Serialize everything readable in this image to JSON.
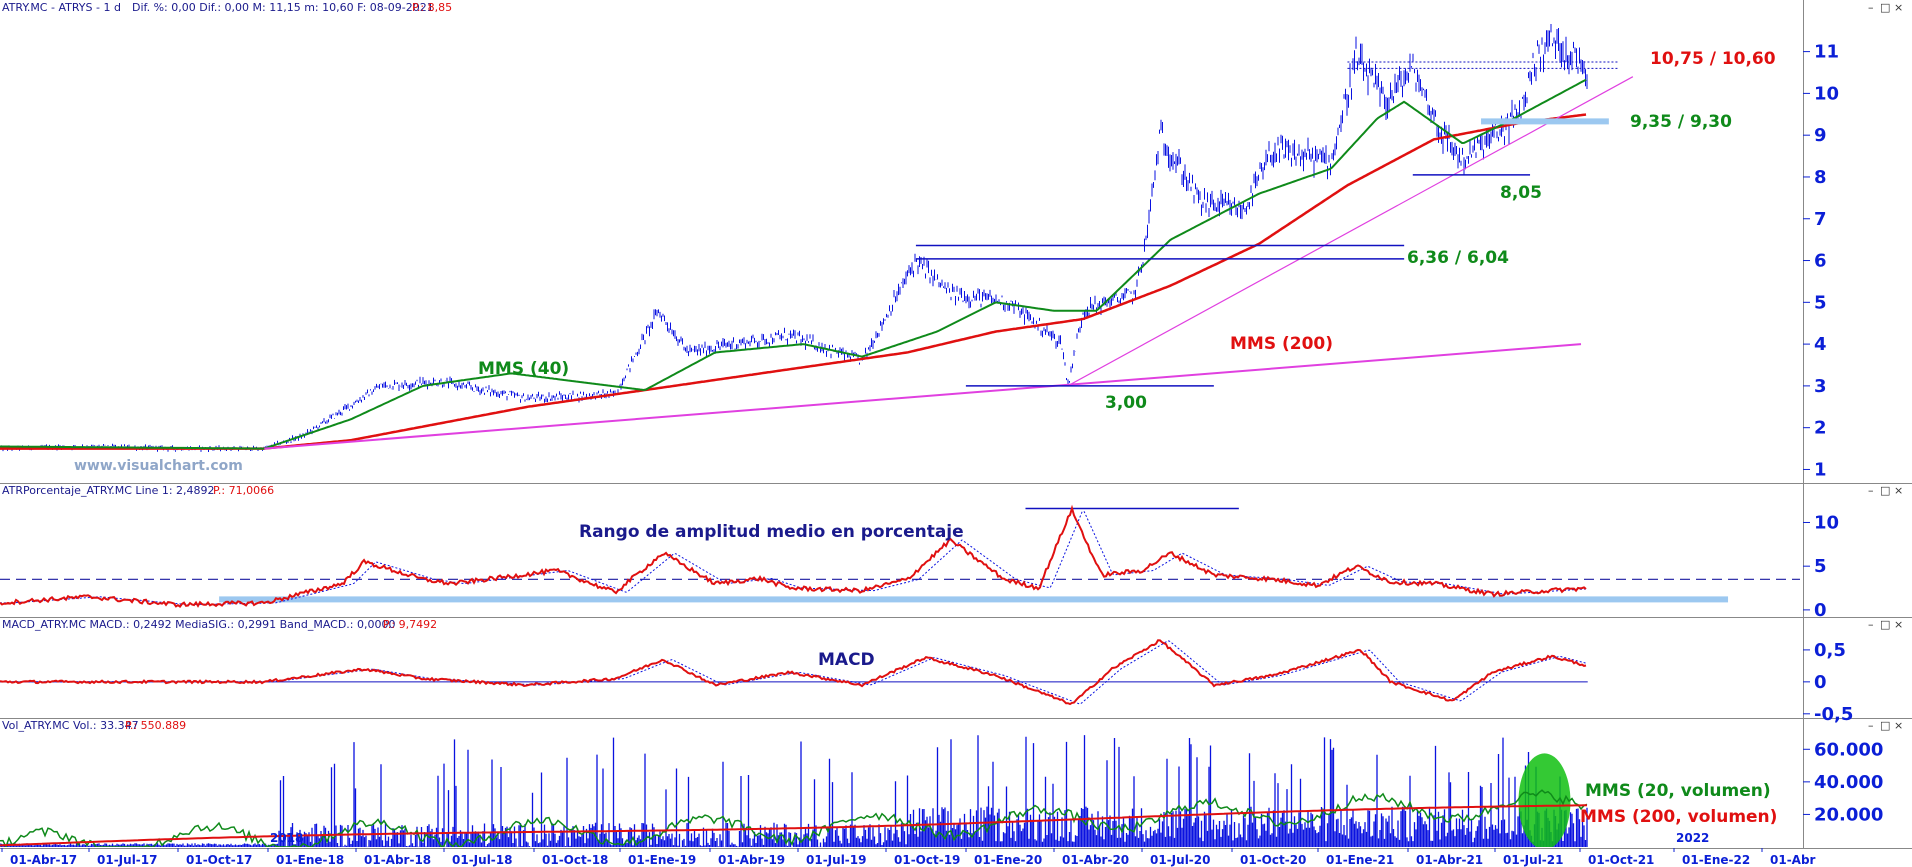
{
  "colors": {
    "price": "#0a12e0",
    "mms40": "#0f8a1a",
    "mms200": "#e01010",
    "trend": "#e040e0",
    "support": "#1010c0",
    "band": "#9cc8f0",
    "axis": "#0b1fd6",
    "header_red": "#e01010",
    "dash": "#1a1aa0"
  },
  "panels": {
    "price": {
      "header_series": "ATRY.MC - ATRYS - 1 d",
      "header_stats": "Dif. %: 0,00  Dif.: 0,00  M: 11,15  m: 10,60  F: 08-09-2021",
      "header_p": "P.: 8,85",
      "watermark": "www.visualchart.com"
    },
    "atr": {
      "header": "ATRPorcentaje_ATRY.MC  Line 1: 2,4892",
      "header_p": "P.: 71,0066",
      "title": "Rango de amplitud medio en porcentaje"
    },
    "macd": {
      "header": "MACD_ATRY.MC  MACD.: 0,2492  MediaSIG.: 0,2991  Band_MACD.: 0,0000",
      "header_p": "P.: 9,7492",
      "title": "MACD"
    },
    "vol": {
      "header": "Vol_ATRY.MC  Vol.: 33.347",
      "header_p": "P.: 550.889",
      "label_2018": "2018",
      "label_2022": "2022"
    }
  },
  "chart_data": [
    {
      "type": "line",
      "panel": "price",
      "y_ticks": [
        "1",
        "2",
        "3",
        "4",
        "5",
        "6",
        "7",
        "8",
        "9",
        "10",
        "11"
      ],
      "ylim": [
        0.7,
        11.9
      ],
      "x_ticks": [
        "01-Abr-17",
        "01-Jul-17",
        "01-Oct-17",
        "01-Ene-18",
        "01-Abr-18",
        "01-Jul-18",
        "01-Oct-18",
        "01-Ene-19",
        "01-Abr-19",
        "01-Jul-19",
        "01-Oct-19",
        "01-Ene-20",
        "01-Abr-20",
        "01-Jul-20",
        "01-Oct-20",
        "01-Ene-21",
        "01-Abr-21",
        "01-Jul-21",
        "01-Oct-21",
        "01-Ene-22",
        "01-Abr"
      ],
      "x_range": [
        "2017-03-01",
        "2022-04-20"
      ],
      "series": [
        {
          "key": "price",
          "x": [
            "2017-03-01",
            "2017-06-01",
            "2017-09-01",
            "2017-12-01",
            "2018-01-10",
            "2018-02-20",
            "2018-04-01",
            "2018-06-01",
            "2018-09-01",
            "2018-12-01",
            "2019-01-15",
            "2019-02-15",
            "2019-04-01",
            "2019-06-01",
            "2019-08-15",
            "2019-10-10",
            "2019-11-15",
            "2020-01-15",
            "2020-03-10",
            "2020-03-16",
            "2020-04-01",
            "2020-04-25",
            "2020-05-25",
            "2020-06-05",
            "2020-06-20",
            "2020-08-01",
            "2020-09-15",
            "2020-10-15",
            "2020-12-15",
            "2021-01-10",
            "2021-02-10",
            "2021-03-10",
            "2021-04-10",
            "2021-05-01",
            "2021-06-15",
            "2021-07-01",
            "2021-07-15",
            "2021-08-01",
            "2021-09-08"
          ],
          "y": [
            1.5,
            1.55,
            1.5,
            1.5,
            1.8,
            2.4,
            3.0,
            3.1,
            2.7,
            2.8,
            4.8,
            3.8,
            4.0,
            4.2,
            3.6,
            6.0,
            5.2,
            5.0,
            4.0,
            3.0,
            4.8,
            5.0,
            5.2,
            6.4,
            9.0,
            7.4,
            7.2,
            8.6,
            8.4,
            10.8,
            9.8,
            10.6,
            9.0,
            8.4,
            9.2,
            9.6,
            10.8,
            11.3,
            10.6
          ]
        },
        {
          "key": "mms40",
          "name": "MMS (40)",
          "x": [
            "2017-03-01",
            "2017-12-01",
            "2018-03-01",
            "2018-05-15",
            "2018-08-15",
            "2019-01-01",
            "2019-03-15",
            "2019-06-15",
            "2019-08-15",
            "2019-11-01",
            "2020-01-01",
            "2020-03-01",
            "2020-04-15",
            "2020-07-01",
            "2020-10-01",
            "2020-12-15",
            "2021-02-01",
            "2021-03-01",
            "2021-05-01",
            "2021-06-15",
            "2021-09-08"
          ],
          "y": [
            1.55,
            1.5,
            2.2,
            3.0,
            3.3,
            2.9,
            3.8,
            4.0,
            3.7,
            4.3,
            5.0,
            4.8,
            4.8,
            6.5,
            7.6,
            8.2,
            9.4,
            9.8,
            8.8,
            9.3,
            10.35
          ]
        },
        {
          "key": "mms200",
          "name": "MMS (200)",
          "x": [
            "2017-03-01",
            "2017-12-01",
            "2018-03-01",
            "2018-09-01",
            "2019-01-01",
            "2019-06-01",
            "2019-10-01",
            "2020-01-01",
            "2020-04-01",
            "2020-07-01",
            "2020-10-01",
            "2021-01-01",
            "2021-04-01",
            "2021-07-01",
            "2021-09-08"
          ],
          "y": [
            1.5,
            1.5,
            1.7,
            2.5,
            2.9,
            3.4,
            3.8,
            4.3,
            4.6,
            5.4,
            6.4,
            7.8,
            8.9,
            9.3,
            9.5
          ]
        }
      ],
      "trendlines": [
        {
          "x": [
            "2017-12-01",
            "2021-09-01"
          ],
          "y": [
            1.5,
            4.0
          ]
        },
        {
          "x": [
            "2020-03-16",
            "2021-10-25"
          ],
          "y": [
            3.0,
            10.4
          ]
        }
      ],
      "levels": [
        {
          "label": "10,75 / 10,60",
          "y": [
            10.75,
            10.6
          ],
          "x": [
            "2021-01-01",
            "2021-10-10"
          ],
          "style": "dotted"
        },
        {
          "label": "9,35 / 9,30",
          "y": [
            9.33
          ],
          "x": [
            "2021-05-20",
            "2021-09-30"
          ],
          "style": "band"
        },
        {
          "label": "8,05",
          "y": [
            8.05
          ],
          "x": [
            "2021-03-10",
            "2021-07-10"
          ],
          "style": "solid"
        },
        {
          "label": "6,36 / 6,04",
          "y": [
            6.36,
            6.04
          ],
          "x": [
            "2019-10-10",
            "2021-03-01"
          ],
          "style": "solid"
        },
        {
          "label": "3,00",
          "y": [
            3.0
          ],
          "x": [
            "2019-12-01",
            "2020-08-15"
          ],
          "style": "solid"
        }
      ],
      "annotations": [
        {
          "text": "MMS (40)",
          "series": "mms40"
        },
        {
          "text": "MMS (200)",
          "series": "mms200"
        }
      ]
    },
    {
      "type": "line",
      "panel": "atr",
      "y_ticks": [
        "0",
        "5",
        "10"
      ],
      "ylim": [
        -0.7,
        12.8
      ],
      "series": [
        {
          "key": "atr",
          "x": [
            "2017-03-01",
            "2017-06-01",
            "2017-09-01",
            "2017-12-01",
            "2018-02-20",
            "2018-03-15",
            "2018-05-15",
            "2018-06-15",
            "2018-10-01",
            "2018-12-01",
            "2019-01-20",
            "2019-03-15",
            "2019-05-01",
            "2019-06-01",
            "2019-08-15",
            "2019-10-01",
            "2019-11-15",
            "2020-01-10",
            "2020-02-15",
            "2020-03-20",
            "2020-04-20",
            "2020-06-01",
            "2020-07-01",
            "2020-08-15",
            "2020-10-15",
            "2020-12-01",
            "2021-01-10",
            "2021-02-15",
            "2021-04-01",
            "2021-06-01",
            "2021-09-08"
          ],
          "y": [
            0.8,
            1.5,
            0.6,
            0.8,
            3.0,
            5.5,
            3.5,
            3.0,
            4.5,
            2.0,
            6.5,
            3.0,
            3.6,
            2.5,
            2.2,
            3.5,
            8.0,
            3.5,
            2.5,
            11.5,
            4.0,
            4.5,
            6.5,
            4.0,
            3.5,
            2.8,
            5.0,
            3.2,
            3.0,
            1.8,
            2.49
          ]
        }
      ],
      "levels": [
        {
          "y": [
            3.5
          ],
          "style": "dashed"
        },
        {
          "y": [
            1.2
          ],
          "style": "band"
        },
        {
          "y": [
            11.6
          ],
          "x": [
            "2020-02-01",
            "2020-09-10"
          ],
          "style": "solid"
        }
      ]
    },
    {
      "type": "line",
      "panel": "macd",
      "y_ticks": [
        "0",
        "0,5",
        "-0,5"
      ],
      "ylim": [
        -0.55,
        0.78
      ],
      "series": [
        {
          "key": "macd",
          "x": [
            "2017-03-01",
            "2017-12-01",
            "2018-03-15",
            "2018-05-15",
            "2018-09-01",
            "2018-12-01",
            "2019-01-20",
            "2019-03-15",
            "2019-06-01",
            "2019-08-15",
            "2019-10-20",
            "2020-01-01",
            "2020-03-20",
            "2020-05-01",
            "2020-06-20",
            "2020-08-15",
            "2020-10-15",
            "2021-01-15",
            "2021-02-15",
            "2021-04-20",
            "2021-06-01",
            "2021-08-01",
            "2021-09-08"
          ],
          "y": [
            0.0,
            0.0,
            0.2,
            0.05,
            -0.05,
            0.05,
            0.35,
            -0.05,
            0.15,
            -0.05,
            0.38,
            0.1,
            -0.35,
            0.2,
            0.65,
            -0.05,
            0.1,
            0.5,
            0.0,
            -0.3,
            0.15,
            0.4,
            0.25
          ]
        }
      ],
      "levels": [
        {
          "y": [
            0
          ],
          "style": "solid"
        }
      ]
    },
    {
      "type": "bar",
      "panel": "vol",
      "y_ticks": [
        "20.000",
        "40.000",
        "60.000"
      ],
      "ylim": [
        0,
        70000
      ],
      "annotations": [
        {
          "text": "MMS (20, volumen)",
          "series": "vol_mms20"
        },
        {
          "text": "MMS (200, volumen)",
          "series": "vol_mms200"
        }
      ]
    }
  ]
}
